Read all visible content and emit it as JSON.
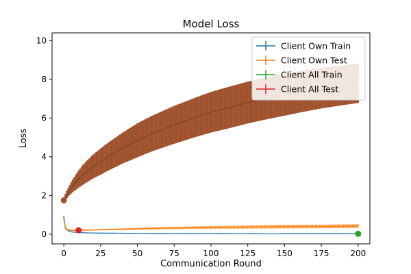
{
  "chart_data": {
    "type": "line",
    "title": "Model Loss",
    "xlabel": "Communication Round",
    "ylabel": "Loss",
    "xlim": [
      -8,
      208
    ],
    "ylim": [
      -0.5,
      10.4
    ],
    "x_ticks": [
      0,
      25,
      50,
      75,
      100,
      125,
      150,
      175,
      200
    ],
    "y_ticks": [
      0,
      2,
      4,
      6,
      8,
      10
    ],
    "grid": false,
    "legend_position": "top-right",
    "series": [
      {
        "name": "Client Own Train",
        "color": "#1f77b4",
        "x": [
          0,
          1,
          2,
          3,
          5,
          10,
          20,
          50,
          100,
          150,
          200
        ],
        "y": [
          0.9,
          0.35,
          0.25,
          0.18,
          0.12,
          0.08,
          0.06,
          0.04,
          0.03,
          0.02,
          0.02
        ],
        "err": [
          0.05,
          0.08,
          0.05,
          0.03,
          0.02,
          0.015,
          0.01,
          0.01,
          0.005,
          0.005,
          0.005
        ]
      },
      {
        "name": "Client Own Test",
        "color": "#ff7f0e",
        "x": [
          0,
          1,
          2,
          5,
          10,
          20,
          50,
          75,
          100,
          125,
          150,
          175,
          200
        ],
        "y": [
          0.75,
          0.35,
          0.25,
          0.2,
          0.2,
          0.22,
          0.28,
          0.32,
          0.35,
          0.37,
          0.39,
          0.4,
          0.42
        ],
        "err": [
          0.05,
          0.05,
          0.04,
          0.03,
          0.03,
          0.03,
          0.05,
          0.06,
          0.07,
          0.08,
          0.09,
          0.09,
          0.1
        ]
      },
      {
        "name": "Client All Train",
        "color": "#2ca02c",
        "x": [
          200
        ],
        "y": [
          0.02
        ],
        "err": [
          0.01
        ]
      },
      {
        "name": "Client All Test",
        "color": "#d62728",
        "x": [
          10
        ],
        "y": [
          0.2
        ],
        "err": [
          0.02
        ]
      }
    ],
    "band": {
      "color": "#a0522d",
      "x": [
        0,
        1,
        2,
        5,
        10,
        15,
        20,
        25,
        30,
        40,
        50,
        60,
        75,
        90,
        100,
        110,
        125,
        140,
        150,
        160,
        175,
        190,
        200
      ],
      "mean": [
        1.75,
        1.9,
        2.05,
        2.4,
        2.85,
        3.2,
        3.5,
        3.75,
        4.0,
        4.45,
        4.85,
        5.2,
        5.65,
        6.05,
        6.3,
        6.5,
        6.8,
        7.05,
        7.2,
        7.35,
        7.55,
        7.7,
        7.8
      ],
      "err": [
        0.15,
        0.18,
        0.2,
        0.3,
        0.45,
        0.55,
        0.62,
        0.68,
        0.72,
        0.8,
        0.88,
        0.92,
        0.98,
        1.02,
        1.05,
        1.07,
        1.08,
        1.08,
        1.08,
        1.07,
        1.05,
        1.03,
        1.02
      ]
    },
    "markers": [
      {
        "series": "Client All Train",
        "x": 200,
        "y": 0.02,
        "color": "#2ca02c"
      },
      {
        "series": "Client All Test",
        "x": 10,
        "y": 0.2,
        "color": "#d62728"
      },
      {
        "series": "band-start",
        "x": 0,
        "y": 1.75,
        "color": "#a0522d"
      }
    ]
  }
}
